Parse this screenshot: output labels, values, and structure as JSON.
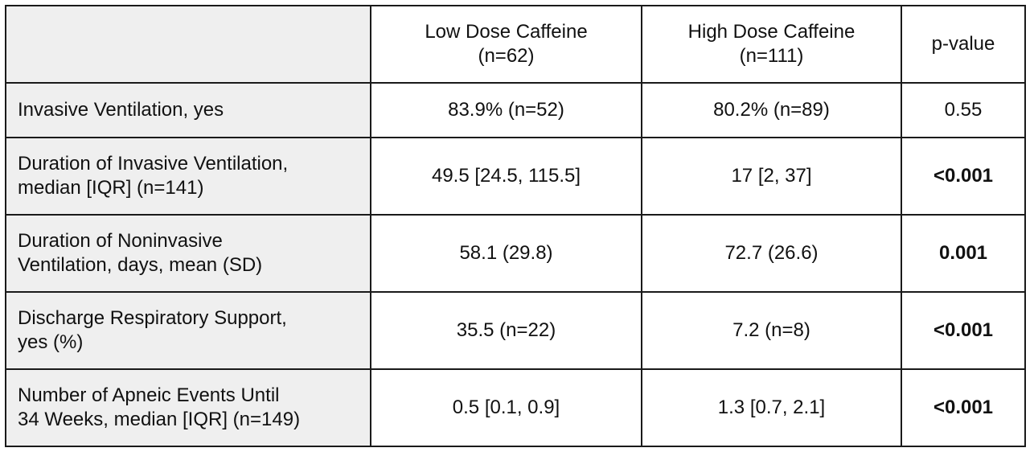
{
  "table": {
    "headers": {
      "low": {
        "line1": "Low Dose Caffeine",
        "line2": "(n=62)"
      },
      "high": {
        "line1": "High Dose Caffeine",
        "line2": "(n=111)"
      },
      "p": "p-value"
    },
    "rows": [
      {
        "label_line1": "Invasive Ventilation, yes",
        "label_line2": "",
        "low": "83.9% (n=52)",
        "high": "80.2% (n=89)",
        "p": "0.55",
        "p_bold": false
      },
      {
        "label_line1": "Duration of Invasive Ventilation,",
        "label_line2": "median [IQR] (n=141)",
        "low": "49.5 [24.5, 115.5]",
        "high": "17 [2, 37]",
        "p": "<0.001",
        "p_bold": true
      },
      {
        "label_line1": "Duration of Noninvasive",
        "label_line2": "Ventilation, days, mean (SD)",
        "low": "58.1 (29.8)",
        "high": "72.7 (26.6)",
        "p": "0.001",
        "p_bold": true
      },
      {
        "label_line1": "Discharge Respiratory Support,",
        "label_line2": "yes (%)",
        "low": "35.5 (n=22)",
        "high": "7.2 (n=8)",
        "p": "<0.001",
        "p_bold": true
      },
      {
        "label_line1": "Number of Apneic Events Until",
        "label_line2": "34 Weeks, median [IQR] (n=149)",
        "low": "0.5 [0.1, 0.9]",
        "high": "1.3 [0.7, 2.1]",
        "p": "<0.001",
        "p_bold": true
      }
    ]
  }
}
